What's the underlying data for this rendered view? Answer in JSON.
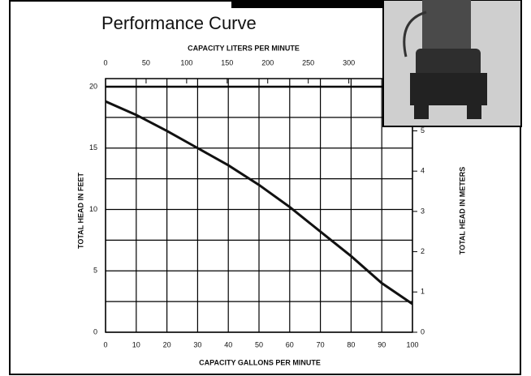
{
  "chart_data": {
    "type": "line",
    "title": "Performance Curve",
    "x_label": "CAPACITY GALLONS PER MINUTE",
    "x2_label": "CAPACITY LITERS PER MINUTE",
    "y_label": "TOTAL HEAD IN FEET",
    "y2_label": "TOTAL HEAD IN METERS",
    "x": [
      0,
      10,
      20,
      30,
      40,
      50,
      60,
      70,
      80,
      90,
      100
    ],
    "values": [
      18.8,
      17.7,
      16.4,
      15.0,
      13.6,
      12.0,
      10.2,
      8.2,
      6.2,
      4.0,
      2.3
    ],
    "color": "#111111",
    "xlim": [
      0,
      100
    ],
    "xticks": [
      0,
      10,
      20,
      30,
      40,
      50,
      60,
      70,
      80,
      90,
      100
    ],
    "x2lim": [
      0,
      378.5
    ],
    "x2ticks": [
      0,
      50,
      100,
      150,
      200,
      250,
      300
    ],
    "ylim": [
      0,
      20
    ],
    "yticks": [
      0,
      5,
      10,
      15,
      20
    ],
    "yminor": [
      2.5,
      7.5,
      12.5,
      17.5
    ],
    "y2lim": [
      0,
      6.096
    ],
    "y2ticks": [
      0,
      1,
      2,
      3,
      4,
      5
    ],
    "grid": true
  }
}
